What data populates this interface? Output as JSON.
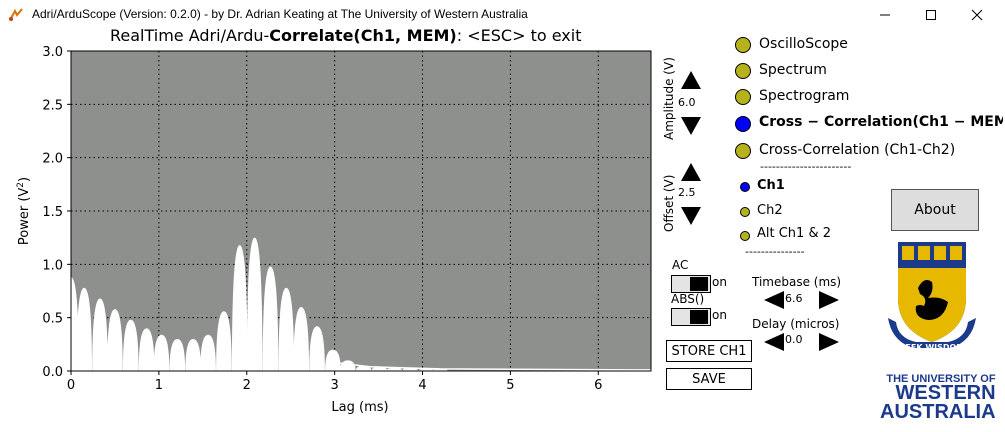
{
  "window": {
    "title": "Adri/ArduScope (Version: 0.2.0) - by Dr. Adrian Keating at The University of Western Australia",
    "minimize_glyph": "—",
    "maximize_glyph": "☐",
    "close_glyph": "✕"
  },
  "plot": {
    "title_prefix": "RealTime Adri/Ardu-",
    "title_bold": "Correlate(Ch1, MEM)",
    "title_suffix": ": <ESC> to exit",
    "xlabel": "Lag (ms)",
    "ylabel_main": "Power (V",
    "ylabel_sup": "2",
    "ylabel_end": ")",
    "xtick_labels": [
      "0",
      "1",
      "2",
      "3",
      "4",
      "5",
      "6"
    ],
    "ytick_labels": [
      "0.0",
      "0.5",
      "1.0",
      "1.5",
      "2.0",
      "2.5",
      "3.0"
    ],
    "background": "#8e908e",
    "trace_color": "#ffffff"
  },
  "controls": {
    "amplitude_label": "Amplitude (V)",
    "amplitude_value": "6.0",
    "offset_label": "Offset (V)",
    "offset_value": "2.5",
    "ac_label": "AC",
    "ac_state": "on",
    "abs_label": "ABS()",
    "abs_state": "on",
    "timebase_label": "Timebase (ms)",
    "timebase_value": "6.6",
    "delay_label": "Delay (micros)",
    "delay_value": "0.0",
    "store_label": "STORE CH1",
    "save_label": "SAVE",
    "about_label": "About"
  },
  "modes": [
    {
      "label": "OscilloScope",
      "selected": false
    },
    {
      "label": "Spectrum",
      "selected": false
    },
    {
      "label": "Spectrogram",
      "selected": false
    },
    {
      "label": "Cross − Correlation(Ch1 − MEM)",
      "selected": true
    },
    {
      "label": "Cross-Correlation (Ch1-Ch2)",
      "selected": false
    }
  ],
  "separator_1": "-----------------------",
  "channels": [
    {
      "label": "Ch1",
      "selected": true
    },
    {
      "label": "Ch2",
      "selected": false
    },
    {
      "label": "Alt Ch1 & 2",
      "selected": false
    }
  ],
  "separator_2": "---------------",
  "logo": {
    "motto": "SEEK WISDOM",
    "name_line1": "THE UNIVERSITY OF",
    "name_line2": "WESTERN",
    "name_line3": "AUSTRALIA"
  },
  "colors": {
    "radio_unselected": "#b5b21e",
    "radio_selected": "#0000ff",
    "uwa_blue": "#1c3a8c",
    "uwa_gold": "#e6b800"
  },
  "chart_data": {
    "type": "area",
    "xlabel": "Lag (ms)",
    "ylabel": "Power (V²)",
    "xlim": [
      0,
      6.6
    ],
    "ylim": [
      0,
      3.0
    ],
    "x_ticks": [
      0,
      1,
      2,
      3,
      4,
      5,
      6
    ],
    "y_ticks": [
      0.0,
      0.5,
      1.0,
      1.5,
      2.0,
      2.5,
      3.0
    ],
    "grid": true,
    "series": [
      {
        "peak_x": [
          0.0,
          0.15,
          0.33,
          0.5,
          0.68,
          0.86,
          1.03,
          1.21,
          1.39,
          1.56,
          1.74,
          1.92,
          2.09,
          2.27,
          2.45,
          2.62,
          2.8,
          2.98,
          3.15,
          3.33,
          3.51,
          3.68,
          3.86,
          4.04,
          4.2
        ],
        "peak_y": [
          0.88,
          0.78,
          0.68,
          0.58,
          0.48,
          0.4,
          0.34,
          0.3,
          0.3,
          0.34,
          0.56,
          1.18,
          1.25,
          0.98,
          0.78,
          0.6,
          0.42,
          0.2,
          0.1,
          0.05,
          0.04,
          0.03,
          0.03,
          0.02,
          0.02
        ]
      }
    ]
  }
}
